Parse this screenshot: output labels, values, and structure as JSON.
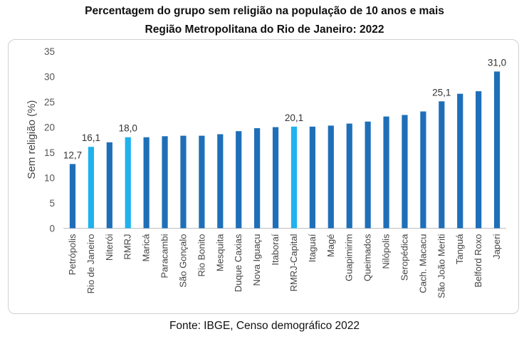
{
  "title": "Percentagem do grupo sem religião na população de 10 anos e mais",
  "subtitle": "Região Metropolitana do Rio de Janeiro: 2022",
  "source": "Fonte: IBGE, Censo demográfico 2022",
  "chart_data": {
    "type": "bar",
    "ylabel": "Sem religião (%)",
    "xlabel": "",
    "ylim": [
      0,
      35
    ],
    "yticks": [
      0,
      5,
      10,
      15,
      20,
      25,
      30,
      35
    ],
    "grid": false,
    "categories": [
      "Petrópolis",
      "Rio de Janeiro",
      "Niterói",
      "RMRJ",
      "Maricá",
      "Paracambi",
      "São Gonçalo",
      "Rio Bonito",
      "Mesquita",
      "Duque Caxias",
      "Nova Iguaçu",
      "Itaboraí",
      "RMRJ-Capital",
      "Itaguaí",
      "Magé",
      "Guapimirim",
      "Queimados",
      "Nilópolis",
      "Seropédica",
      "Cach. Macacu",
      "São João Meriti",
      "Tanguá",
      "Belford Roxo",
      "Japeri"
    ],
    "values": [
      12.7,
      16.1,
      17.0,
      18.0,
      18.0,
      18.2,
      18.3,
      18.3,
      18.6,
      19.2,
      19.8,
      20.0,
      20.1,
      20.1,
      20.3,
      20.7,
      21.1,
      22.1,
      22.4,
      23.1,
      25.1,
      26.6,
      27.1,
      31.0
    ],
    "data_labels": [
      "12,7",
      "16,1",
      "",
      "18,0",
      "",
      "",
      "",
      "",
      "",
      "",
      "",
      "",
      "20,1",
      "",
      "",
      "",
      "",
      "",
      "",
      "",
      "25,1",
      "",
      "",
      "31,0"
    ],
    "highlighted": [
      false,
      true,
      false,
      true,
      false,
      false,
      false,
      false,
      false,
      false,
      false,
      false,
      true,
      false,
      false,
      false,
      false,
      false,
      false,
      false,
      false,
      false,
      false,
      false
    ],
    "colors": {
      "default": "#1f6fb8",
      "highlight": "#1fb2ee",
      "axis": "#bfbfbf"
    }
  }
}
